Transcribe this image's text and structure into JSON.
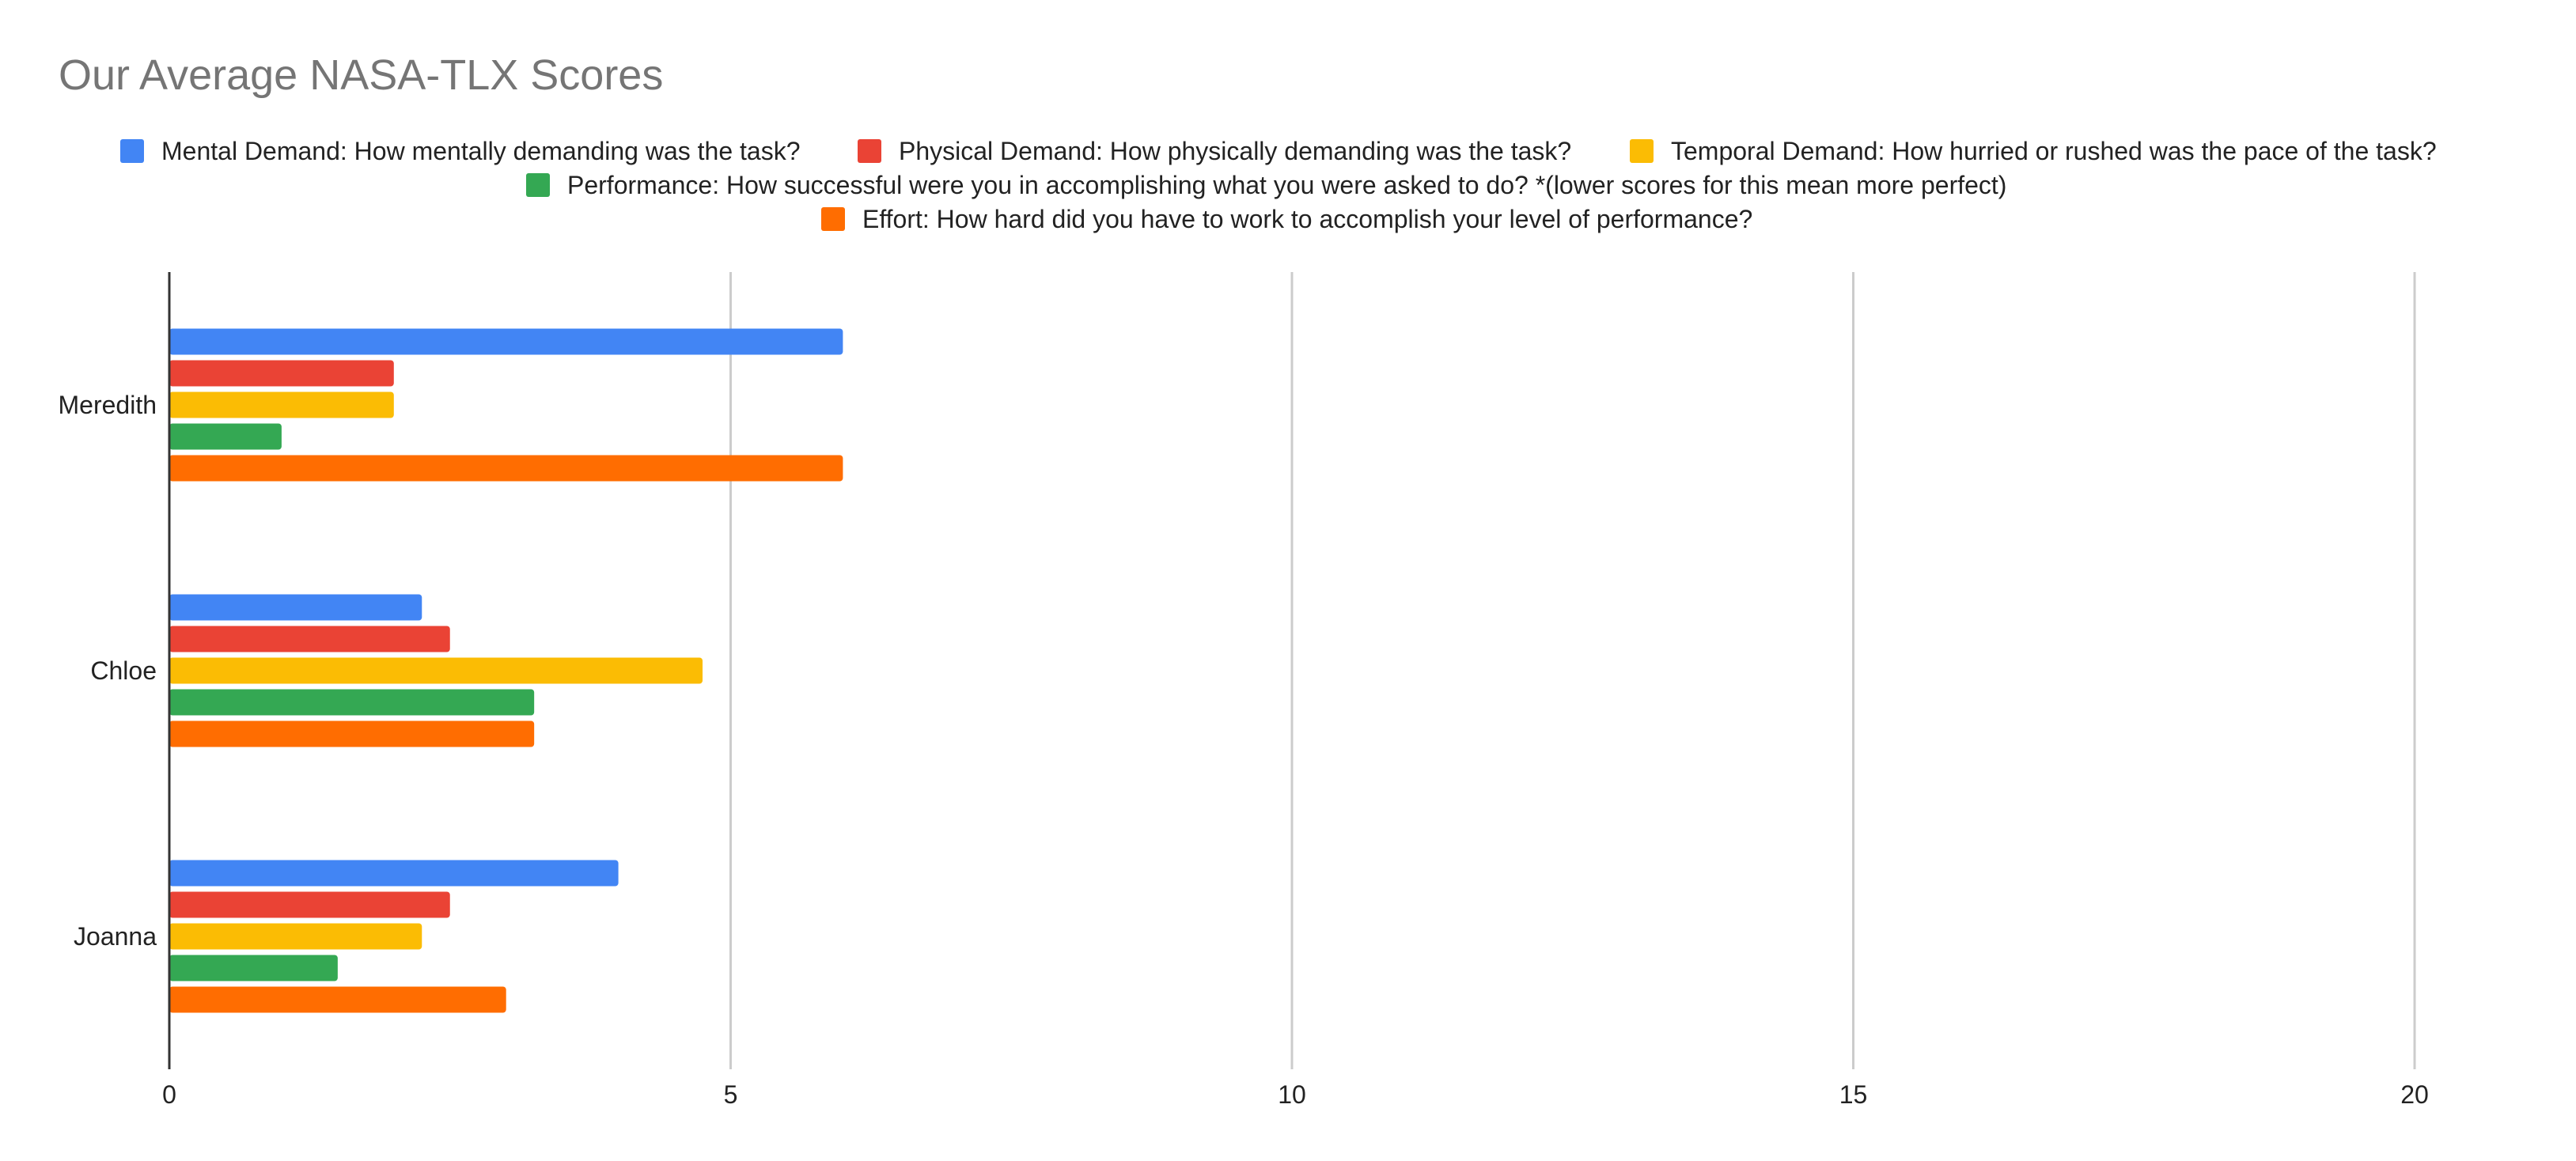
{
  "chart_data": {
    "type": "bar",
    "orientation": "horizontal",
    "title": "Our Average NASA-TLX Scores",
    "xlabel": "",
    "ylabel": "",
    "xlim": [
      0,
      21
    ],
    "x_ticks": [
      0,
      5,
      10,
      15,
      20
    ],
    "x_tick_labels": [
      "0",
      "5",
      "10",
      "15",
      "20"
    ],
    "grid": true,
    "legend_position": "top",
    "categories": [
      "Meredith",
      "Chloe",
      "Joanna"
    ],
    "series": [
      {
        "name": "Mental Demand: How mentally demanding was the task?",
        "color": "#4285F4",
        "values": [
          6,
          2.25,
          4
        ]
      },
      {
        "name": "Physical Demand: How physically demanding was the task?",
        "color": "#EA4335",
        "values": [
          2,
          2.5,
          2.5
        ]
      },
      {
        "name": "Temporal Demand: How hurried or rushed was the pace of the task?",
        "color": "#FBBC04",
        "values": [
          2,
          4.75,
          2.25
        ]
      },
      {
        "name": "Performance: How successful were you in accomplishing what you were asked to do? *(lower scores for this mean more perfect)",
        "color": "#34A853",
        "values": [
          1,
          3.25,
          1.5
        ]
      },
      {
        "name": "Effort: How hard did you have to work to accomplish your level of performance?",
        "color": "#FF6D01",
        "values": [
          6,
          3.25,
          3
        ]
      }
    ]
  }
}
